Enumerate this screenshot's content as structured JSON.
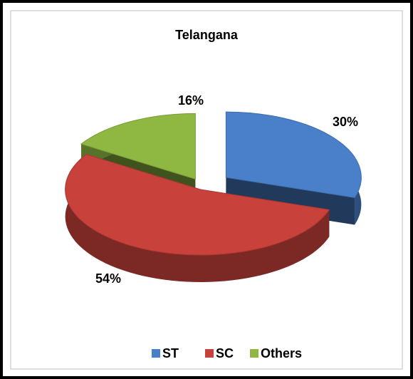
{
  "chart_data": {
    "type": "pie",
    "title": "Telangana",
    "categories": [
      "ST",
      "SC",
      "Others"
    ],
    "values": [
      30,
      54,
      16
    ],
    "value_labels": [
      "30%",
      "54%",
      "16%"
    ],
    "colors": [
      "#4a7fc9",
      "#c8413b",
      "#8fb843"
    ],
    "legend": "bottom"
  }
}
